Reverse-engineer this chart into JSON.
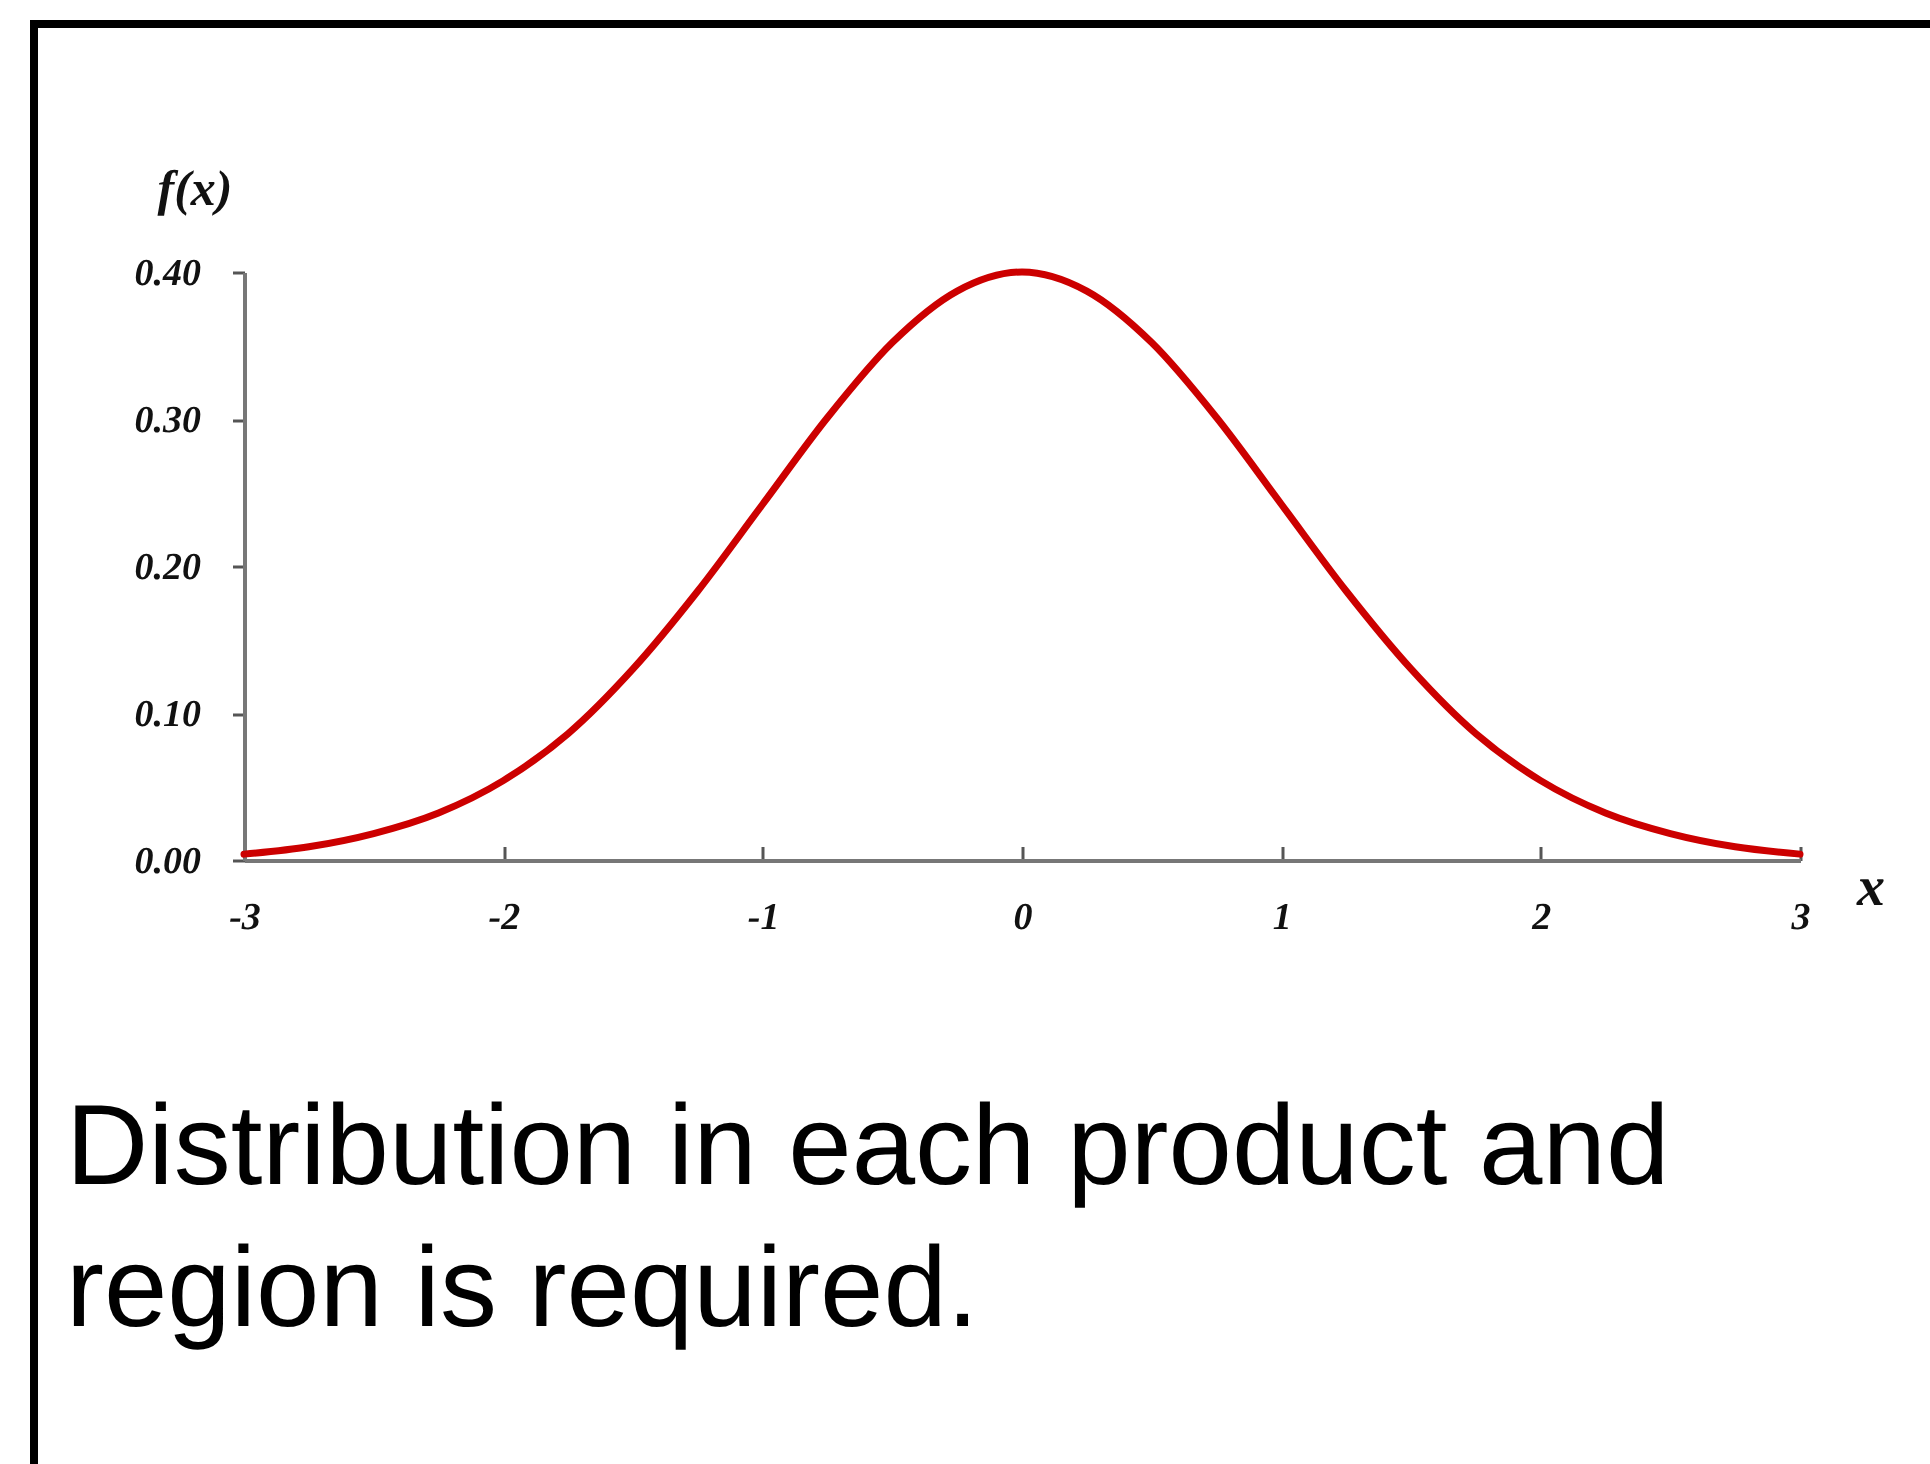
{
  "chart_data": {
    "type": "line",
    "x": [
      -3,
      -2.75,
      -2.5,
      -2.25,
      -2,
      -1.75,
      -1.5,
      -1.25,
      -1,
      -0.75,
      -0.5,
      -0.25,
      0,
      0.25,
      0.5,
      0.75,
      1,
      1.25,
      1.5,
      1.75,
      2,
      2.25,
      2.5,
      2.75,
      3
    ],
    "series": [
      {
        "color": "#cc0000",
        "values": [
          0.004,
          0.009,
          0.018,
          0.032,
          0.054,
          0.086,
          0.13,
          0.183,
          0.242,
          0.301,
          0.352,
          0.387,
          0.4,
          0.387,
          0.352,
          0.301,
          0.242,
          0.183,
          0.13,
          0.086,
          0.054,
          0.032,
          0.018,
          0.009,
          0.004
        ]
      }
    ],
    "xlabel": "x",
    "ylabel": "f(x)",
    "xlim": [
      -3,
      3
    ],
    "xticks": [
      -3,
      -2,
      -1,
      0,
      1,
      2,
      3
    ],
    "ylim": [
      0,
      0.4
    ],
    "yticks": [
      {
        "value": 0,
        "label": "0.00"
      },
      {
        "value": 0.1,
        "label": "0.10"
      },
      {
        "value": 0.2,
        "label": "0.20"
      },
      {
        "value": 0.3,
        "label": "0.30"
      },
      {
        "value": 0.4,
        "label": "0.40"
      }
    ],
    "line_style": "solid",
    "grid": false,
    "legend": false,
    "annotations": [
      "Distribution in each product and region is required."
    ]
  }
}
